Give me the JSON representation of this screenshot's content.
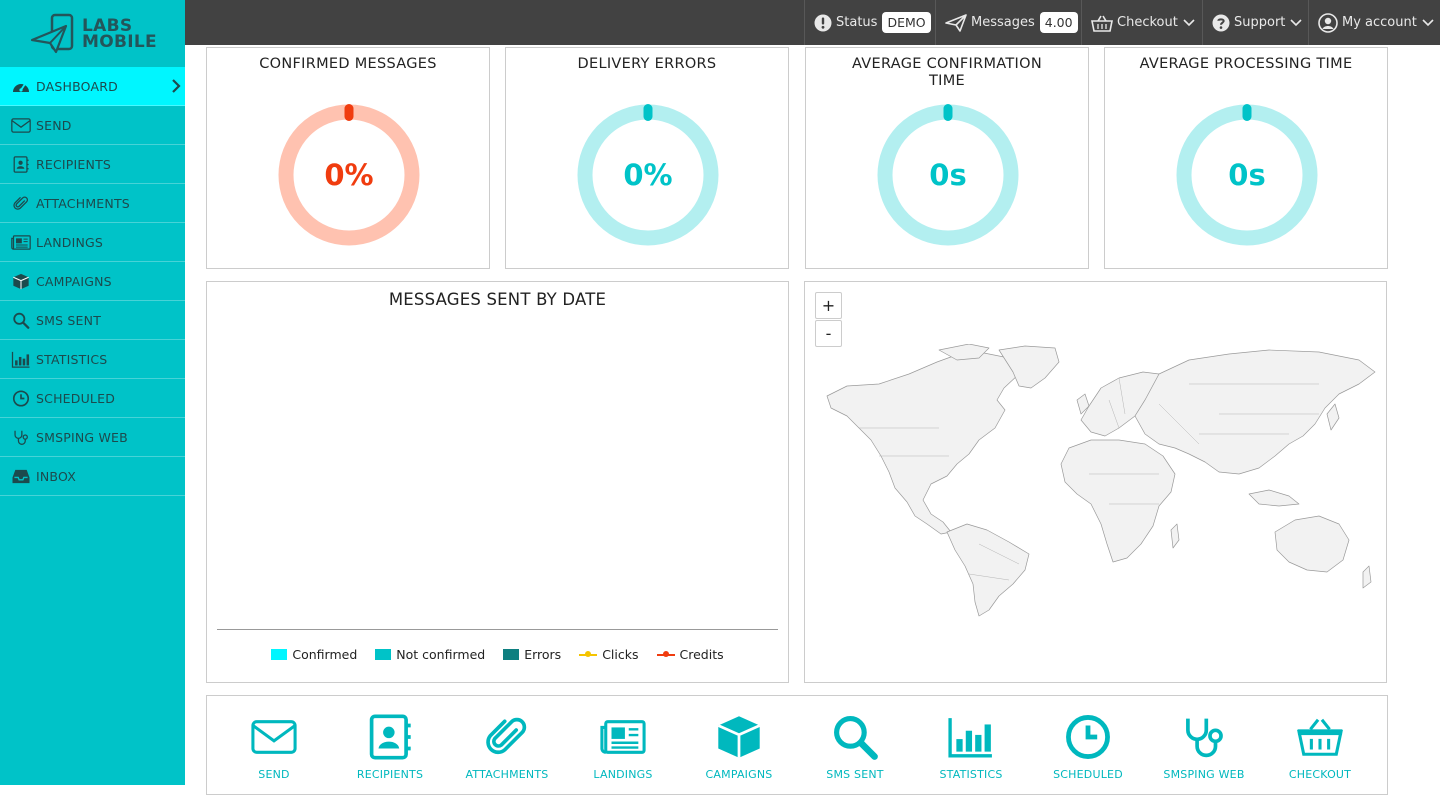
{
  "brand": {
    "line1": "LABS",
    "line2": "MOBILE"
  },
  "sidebar": {
    "items": [
      {
        "label": "DASHBOARD",
        "icon": "dashboard-icon"
      },
      {
        "label": "SEND",
        "icon": "envelope-icon"
      },
      {
        "label": "RECIPIENTS",
        "icon": "address-book-icon"
      },
      {
        "label": "ATTACHMENTS",
        "icon": "paperclip-icon"
      },
      {
        "label": "LANDINGS",
        "icon": "newspaper-icon"
      },
      {
        "label": "CAMPAIGNS",
        "icon": "cube-icon"
      },
      {
        "label": "SMS SENT",
        "icon": "search-icon"
      },
      {
        "label": "STATISTICS",
        "icon": "bar-chart-icon"
      },
      {
        "label": "SCHEDULED",
        "icon": "clock-icon"
      },
      {
        "label": "SMSPING WEB",
        "icon": "stethoscope-icon"
      },
      {
        "label": "INBOX",
        "icon": "inbox-icon"
      }
    ]
  },
  "topbar": {
    "status_label": "Status",
    "status_value": "DEMO",
    "messages_label": "Messages",
    "messages_value": "4.00",
    "checkout_label": "Checkout",
    "support_label": "Support",
    "account_label": "My account"
  },
  "kpis": [
    {
      "title": "CONFIRMED MESSAGES",
      "value": "0%",
      "fraction": 0,
      "color": "#f03c0f",
      "track": "#ffc2b0"
    },
    {
      "title": "DELIVERY ERRORS",
      "value": "0%",
      "fraction": 0,
      "color": "#00c3c8",
      "track": "#b3eff0"
    },
    {
      "title": "AVERAGE CONFIRMATION TIME",
      "value": "0s",
      "fraction": 0,
      "color": "#00c3c8",
      "track": "#b3eff0"
    },
    {
      "title": "AVERAGE PROCESSING TIME",
      "value": "0s",
      "fraction": 0,
      "color": "#00c3c8",
      "track": "#b3eff0"
    }
  ],
  "messages_chart": {
    "title": "MESSAGES SENT BY DATE",
    "legend": [
      {
        "label": "Confirmed",
        "color": "#00f6ff",
        "kind": "box"
      },
      {
        "label": "Not confirmed",
        "color": "#00c3c8",
        "kind": "box"
      },
      {
        "label": "Errors",
        "color": "#0e7f80",
        "kind": "box"
      },
      {
        "label": "Clicks",
        "color": "#f5c400",
        "kind": "line"
      },
      {
        "label": "Credits",
        "color": "#f03c0f",
        "kind": "line"
      }
    ]
  },
  "map": {
    "zoom_in": "+",
    "zoom_out": "-"
  },
  "shortcuts": [
    {
      "label": "SEND",
      "icon": "envelope-icon"
    },
    {
      "label": "RECIPIENTS",
      "icon": "address-book-icon"
    },
    {
      "label": "ATTACHMENTS",
      "icon": "paperclip-icon"
    },
    {
      "label": "LANDINGS",
      "icon": "newspaper-icon"
    },
    {
      "label": "CAMPAIGNS",
      "icon": "cube-icon"
    },
    {
      "label": "SMS SENT",
      "icon": "search-icon"
    },
    {
      "label": "STATISTICS",
      "icon": "bar-chart-icon"
    },
    {
      "label": "SCHEDULED",
      "icon": "clock-icon"
    },
    {
      "label": "SMSPING WEB",
      "icon": "stethoscope-icon"
    },
    {
      "label": "CHECKOUT",
      "icon": "basket-icon"
    }
  ]
}
